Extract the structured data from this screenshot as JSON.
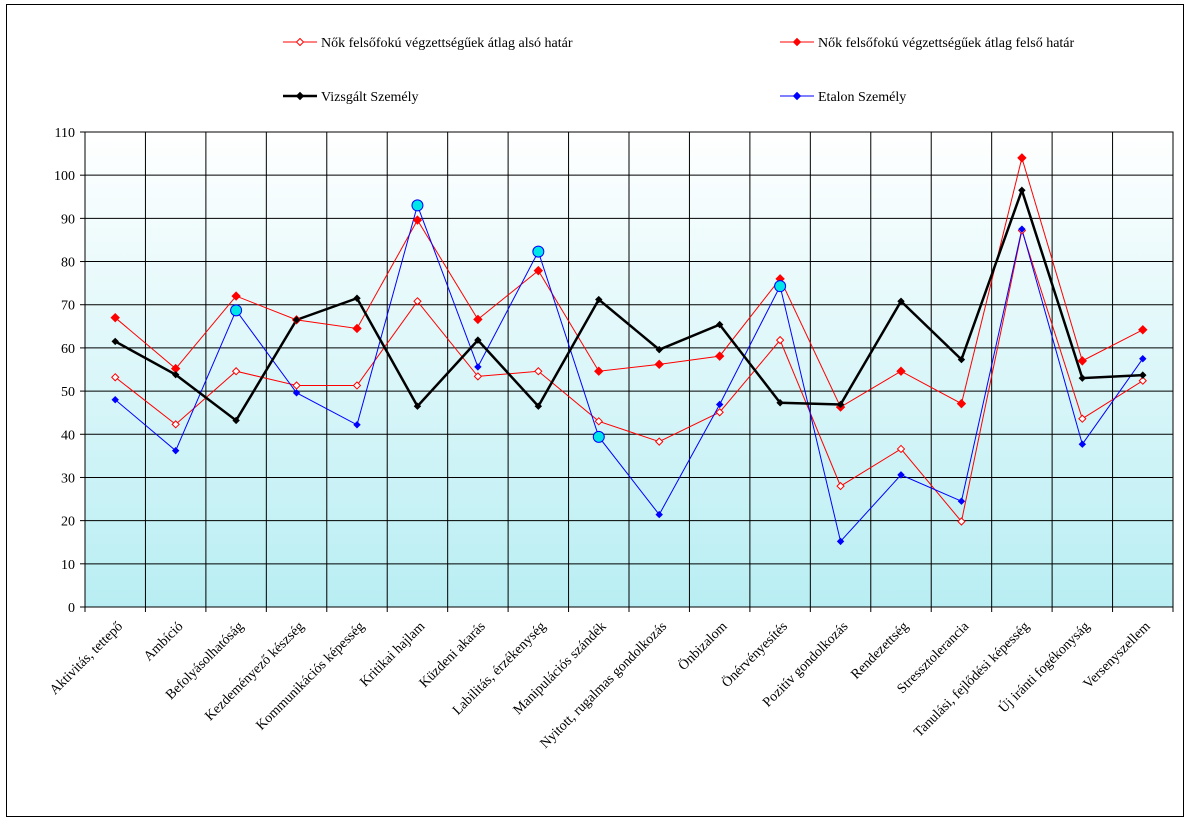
{
  "chart_data": {
    "type": "line",
    "title": "",
    "xlabel": "",
    "ylabel": "",
    "ylim": [
      0,
      110
    ],
    "ytick_step": 10,
    "grid": true,
    "legend_position": "top",
    "background_gradient": [
      "#ffffff",
      "#b8eef3"
    ],
    "categories": [
      "Aktivitás, tettерő",
      "Ambíció",
      "Befolyásolhatóság",
      "Kezdeményező készség",
      "Kommunikációs képesség",
      "Kritikai hajlam",
      "Küzdeni akarás",
      "Labilitás, érzékenység",
      "Manipulációs szándék",
      "Nyitott, rugalmas gondolkozás",
      "Önbizalom",
      "Önérvényesítés",
      "Pozitív gondolkozás",
      "Rendezettség",
      "Stressztolerancia",
      "Tanulási, fejlődési képesség",
      "Új iránti fogékonyság",
      "Versenyszellem"
    ],
    "series": [
      {
        "name": "Nők felsőfokú végzettségűek átlag alsó határ",
        "color": "#ff0000",
        "marker": "open-diamond",
        "values": [
          53.2,
          42.3,
          54.6,
          51.3,
          51.3,
          70.8,
          53.4,
          54.6,
          43.0,
          38.3,
          45.1,
          61.8,
          28.0,
          36.6,
          19.8,
          87.2,
          43.6,
          52.4
        ]
      },
      {
        "name": "Nők felsőfokú végzettségűek átlag felső határ",
        "color": "#ff0000",
        "marker": "filled-diamond",
        "values": [
          67.0,
          55.2,
          72.0,
          66.5,
          64.5,
          89.6,
          66.6,
          77.9,
          54.6,
          56.2,
          58.1,
          76.0,
          46.3,
          54.6,
          47.1,
          104.0,
          57.0,
          64.2
        ]
      },
      {
        "name": "Vizsgált Személy",
        "color": "#000000",
        "marker": "filled-diamond-thick",
        "values": [
          61.5,
          53.8,
          43.2,
          66.5,
          71.5,
          46.5,
          61.8,
          46.5,
          71.2,
          59.6,
          65.4,
          47.3,
          46.9,
          70.8,
          57.3,
          96.5,
          53.0,
          53.7
        ]
      },
      {
        "name": "Etalon  Személy",
        "color": "#0000ff",
        "marker": "filled-diamond-small",
        "values": [
          48.0,
          36.2,
          68.7,
          49.6,
          42.2,
          93.0,
          55.6,
          82.3,
          39.4,
          21.4,
          46.9,
          74.3,
          15.2,
          30.6,
          24.5,
          87.5,
          37.7,
          57.5
        ]
      }
    ],
    "highlight_points": {
      "series": "Etalon  Személy",
      "color": "#00e5e5",
      "indices": [
        2,
        5,
        7,
        8,
        11
      ]
    }
  }
}
